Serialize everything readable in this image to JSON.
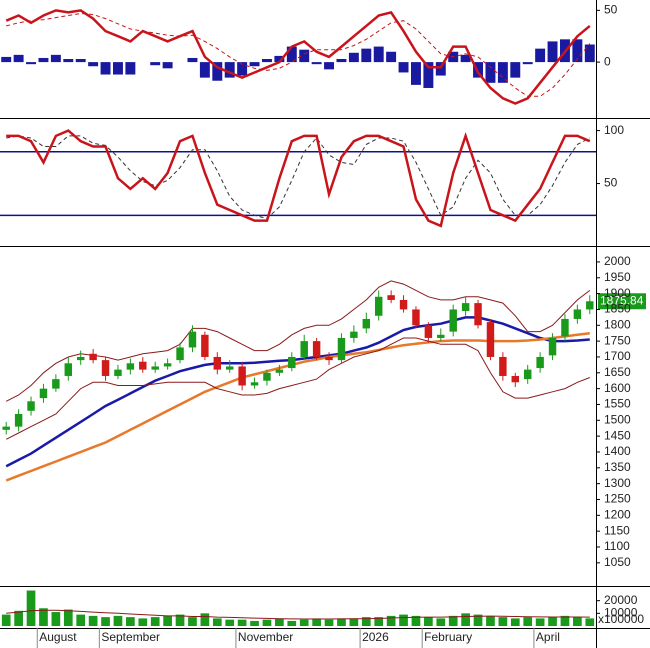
{
  "chart_data": [
    {
      "type": "macd",
      "series": [
        {
          "name": "MACD",
          "color": "#c8141a",
          "values": [
            40,
            45,
            38,
            45,
            50,
            48,
            50,
            42,
            30,
            25,
            20,
            30,
            25,
            20,
            25,
            30,
            5,
            -5,
            -10,
            -15,
            -10,
            -5,
            0,
            15,
            20,
            10,
            5,
            15,
            25,
            35,
            45,
            48,
            30,
            10,
            -5,
            -5,
            15,
            15,
            -10,
            -25,
            -35,
            -40,
            -35,
            -20,
            -5,
            10,
            25,
            35
          ]
        },
        {
          "name": "Signal",
          "color": "#c8141a",
          "values": [
            35,
            38,
            40,
            41,
            43,
            45,
            47,
            46,
            42,
            37,
            32,
            30,
            28,
            26,
            25,
            26,
            20,
            13,
            5,
            -2,
            -6,
            -8,
            -6,
            0,
            8,
            12,
            12,
            12,
            16,
            22,
            30,
            38,
            40,
            32,
            20,
            8,
            5,
            8,
            5,
            -5,
            -15,
            -25,
            -33,
            -33,
            -25,
            -12,
            3,
            18
          ]
        },
        {
          "name": "Histogram",
          "color": "#1a1aa0",
          "values": [
            5,
            7,
            -2,
            4,
            7,
            3,
            3,
            -4,
            -12,
            -12,
            -12,
            0,
            -3,
            -6,
            0,
            4,
            -15,
            -18,
            -15,
            -13,
            -4,
            3,
            6,
            15,
            12,
            -2,
            -7,
            3,
            9,
            13,
            15,
            10,
            -10,
            -22,
            -25,
            -13,
            10,
            7,
            -15,
            -20,
            -20,
            -15,
            -2,
            13,
            20,
            22,
            22,
            17
          ]
        }
      ],
      "ylim": [
        -54,
        60
      ],
      "yticks": [
        0,
        50
      ]
    },
    {
      "type": "stochastic",
      "series": [
        {
          "name": "%K",
          "color": "#c8141a",
          "values": [
            95,
            95,
            90,
            70,
            95,
            100,
            90,
            85,
            85,
            55,
            45,
            55,
            45,
            60,
            90,
            95,
            60,
            30,
            25,
            20,
            15,
            15,
            55,
            90,
            95,
            95,
            40,
            75,
            90,
            95,
            95,
            90,
            85,
            35,
            15,
            10,
            60,
            95,
            60,
            25,
            20,
            15,
            30,
            45,
            70,
            95,
            95,
            90
          ]
        },
        {
          "name": "%D",
          "color": "#333333",
          "values": [
            93,
            95,
            93,
            85,
            85,
            95,
            95,
            88,
            86,
            75,
            62,
            52,
            48,
            53,
            65,
            82,
            82,
            62,
            38,
            25,
            20,
            17,
            28,
            53,
            80,
            93,
            77,
            70,
            68,
            87,
            93,
            93,
            90,
            70,
            45,
            20,
            28,
            55,
            72,
            60,
            35,
            20,
            20,
            30,
            48,
            70,
            87,
            93
          ]
        }
      ],
      "levels": [
        80,
        20
      ],
      "level_color": "#10108f",
      "ylim": [
        -8,
        110
      ],
      "yticks": [
        50,
        100
      ]
    },
    {
      "type": "candlestick",
      "open": [
        1470,
        1480,
        1530,
        1570,
        1600,
        1640,
        1690,
        1710,
        1690,
        1640,
        1660,
        1685,
        1660,
        1670,
        1690,
        1730,
        1770,
        1700,
        1660,
        1670,
        1610,
        1625,
        1650,
        1665,
        1700,
        1750,
        1700,
        1690,
        1760,
        1790,
        1830,
        1895,
        1880,
        1850,
        1800,
        1760,
        1780,
        1845,
        1870,
        1810,
        1700,
        1640,
        1630,
        1665,
        1705,
        1765,
        1820,
        1850
      ],
      "high": [
        1495,
        1535,
        1575,
        1615,
        1645,
        1700,
        1720,
        1725,
        1700,
        1675,
        1695,
        1700,
        1685,
        1695,
        1745,
        1800,
        1780,
        1715,
        1690,
        1685,
        1635,
        1660,
        1675,
        1715,
        1770,
        1760,
        1715,
        1775,
        1800,
        1840,
        1910,
        1910,
        1895,
        1860,
        1810,
        1790,
        1865,
        1890,
        1880,
        1820,
        1715,
        1650,
        1675,
        1715,
        1775,
        1835,
        1865,
        1895
      ],
      "low": [
        1455,
        1465,
        1515,
        1555,
        1590,
        1625,
        1675,
        1680,
        1625,
        1630,
        1645,
        1650,
        1650,
        1660,
        1680,
        1715,
        1690,
        1645,
        1650,
        1595,
        1600,
        1610,
        1640,
        1655,
        1690,
        1690,
        1675,
        1680,
        1745,
        1775,
        1815,
        1870,
        1840,
        1790,
        1745,
        1750,
        1765,
        1830,
        1790,
        1690,
        1625,
        1605,
        1615,
        1650,
        1690,
        1750,
        1805,
        1835
      ],
      "close": [
        1480,
        1520,
        1560,
        1600,
        1630,
        1680,
        1700,
        1690,
        1640,
        1660,
        1680,
        1660,
        1670,
        1680,
        1730,
        1780,
        1700,
        1660,
        1670,
        1610,
        1620,
        1650,
        1660,
        1700,
        1750,
        1700,
        1690,
        1760,
        1780,
        1820,
        1890,
        1880,
        1850,
        1800,
        1760,
        1770,
        1850,
        1870,
        1800,
        1700,
        1640,
        1620,
        1660,
        1700,
        1760,
        1820,
        1850,
        1875.84
      ],
      "up_color": "#1a9a1a",
      "down_color": "#d11a1a",
      "series": [
        {
          "name": "MA50",
          "color": "#1a1aa8",
          "values": [
            1355,
            1375,
            1395,
            1420,
            1445,
            1470,
            1495,
            1520,
            1545,
            1565,
            1585,
            1605,
            1625,
            1640,
            1655,
            1665,
            1675,
            1680,
            1680,
            1680,
            1682,
            1685,
            1688,
            1690,
            1695,
            1700,
            1705,
            1710,
            1720,
            1730,
            1745,
            1765,
            1785,
            1795,
            1800,
            1805,
            1815,
            1825,
            1825,
            1815,
            1805,
            1790,
            1775,
            1760,
            1750,
            1750,
            1752,
            1755
          ]
        },
        {
          "name": "MA200",
          "color": "#e8782a",
          "values": [
            1310,
            1325,
            1340,
            1355,
            1370,
            1385,
            1400,
            1415,
            1430,
            1450,
            1470,
            1490,
            1510,
            1530,
            1550,
            1570,
            1590,
            1605,
            1620,
            1635,
            1645,
            1655,
            1665,
            1675,
            1685,
            1692,
            1700,
            1705,
            1710,
            1715,
            1722,
            1730,
            1737,
            1742,
            1746,
            1750,
            1752,
            1752,
            1752,
            1750,
            1750,
            1750,
            1752,
            1755,
            1760,
            1765,
            1770,
            1775
          ]
        },
        {
          "name": "Upper band",
          "color": "#8b1a1a",
          "values": [
            1560,
            1580,
            1610,
            1650,
            1680,
            1700,
            1710,
            1705,
            1700,
            1690,
            1700,
            1710,
            1715,
            1720,
            1740,
            1790,
            1790,
            1780,
            1760,
            1740,
            1720,
            1720,
            1740,
            1770,
            1790,
            1800,
            1800,
            1820,
            1850,
            1880,
            1920,
            1940,
            1930,
            1910,
            1890,
            1880,
            1880,
            1890,
            1890,
            1880,
            1870,
            1830,
            1780,
            1780,
            1800,
            1840,
            1880,
            1910
          ]
        },
        {
          "name": "Lower band",
          "color": "#8b1a1a",
          "values": [
            1440,
            1460,
            1480,
            1500,
            1520,
            1560,
            1600,
            1620,
            1620,
            1610,
            1610,
            1610,
            1615,
            1620,
            1620,
            1620,
            1620,
            1600,
            1590,
            1580,
            1580,
            1585,
            1600,
            1610,
            1620,
            1630,
            1660,
            1680,
            1700,
            1710,
            1720,
            1740,
            1760,
            1760,
            1750,
            1740,
            1740,
            1740,
            1720,
            1650,
            1590,
            1570,
            1570,
            1580,
            1590,
            1600,
            1620,
            1635
          ]
        }
      ],
      "last_value": 1875.84,
      "last_color": "#1a9a1a",
      "ylim": [
        980,
        2044
      ],
      "yticks": [
        1050,
        1100,
        1150,
        1200,
        1250,
        1300,
        1350,
        1400,
        1450,
        1500,
        1550,
        1600,
        1650,
        1700,
        1750,
        1800,
        1850,
        1900,
        1950,
        2000
      ]
    },
    {
      "type": "bar",
      "categories": [
        null,
        null,
        null,
        "August",
        null,
        null,
        null,
        null,
        "September",
        null,
        null,
        null,
        null,
        null,
        null,
        null,
        null,
        null,
        null,
        "November",
        null,
        null,
        null,
        null,
        null,
        null,
        null,
        null,
        null,
        "2026",
        null,
        null,
        null,
        null,
        "February",
        null,
        null,
        null,
        null,
        null,
        null,
        null,
        null,
        "April",
        null,
        null,
        null,
        null
      ],
      "series": [
        {
          "name": "Volume",
          "color": "#1a9a1a",
          "values": [
            9000,
            12000,
            28000,
            14000,
            11000,
            13000,
            9000,
            8000,
            7000,
            8000,
            7000,
            6000,
            7000,
            8000,
            9000,
            7000,
            10000,
            6000,
            5000,
            5000,
            4000,
            5000,
            6000,
            4000,
            5000,
            6000,
            5000,
            6000,
            6000,
            7000,
            7000,
            8000,
            9000,
            8000,
            7000,
            6000,
            8000,
            10000,
            9000,
            8000,
            7000,
            6000,
            7000,
            6000,
            7000,
            8000,
            7000,
            6000
          ]
        },
        {
          "name": "Volume MA",
          "color": "#8b1a1a",
          "values": [
            10000,
            11000,
            12000,
            12500,
            12500,
            12000,
            11500,
            11000,
            10500,
            10000,
            9500,
            9000,
            8500,
            8000,
            8000,
            7500,
            7500,
            7000,
            6800,
            6500,
            6200,
            6000,
            5800,
            5600,
            5500,
            5500,
            5500,
            5600,
            5700,
            5800,
            6000,
            6300,
            6600,
            6900,
            7000,
            7000,
            7200,
            7500,
            7700,
            7800,
            7700,
            7500,
            7300,
            7200,
            7100,
            7100,
            7100,
            7000
          ]
        }
      ],
      "unit_label": "x100000",
      "ylim": [
        0,
        30000
      ],
      "yticks": [
        10000,
        20000
      ]
    }
  ]
}
